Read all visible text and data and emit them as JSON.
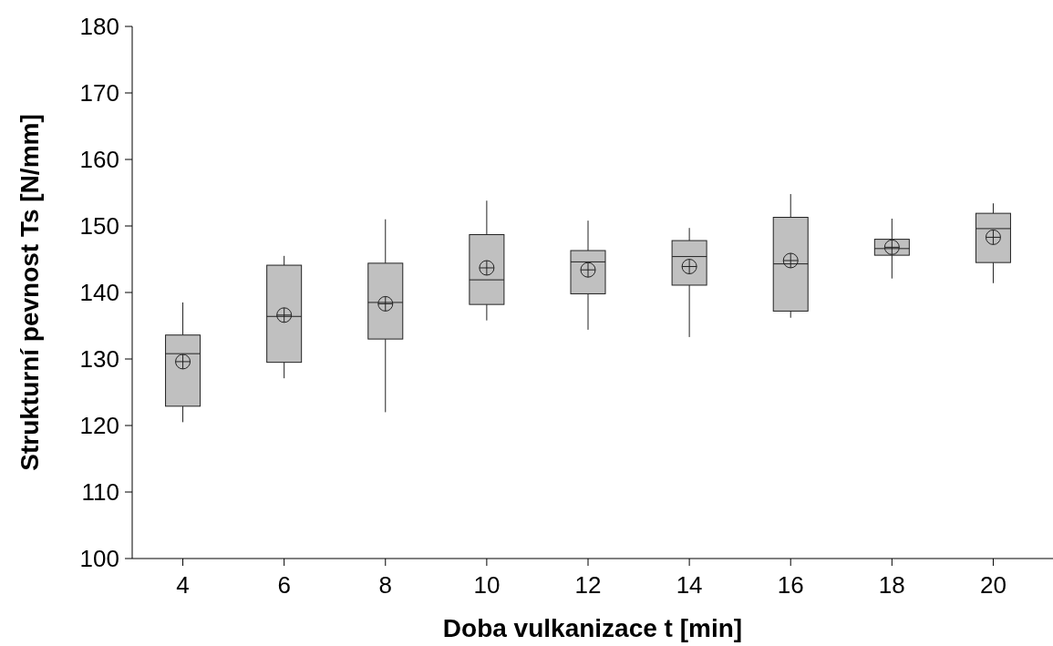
{
  "chart_data": {
    "type": "box",
    "xlabel": "Doba vulkanizace t [min]",
    "ylabel": "Strukturní pevnost Ts [N/mm]",
    "categories": [
      "4",
      "6",
      "8",
      "10",
      "12",
      "14",
      "16",
      "18",
      "20"
    ],
    "color": "#c0c0c0",
    "ylim": [
      100,
      180
    ],
    "yticks": [
      100,
      110,
      120,
      130,
      140,
      150,
      160,
      170,
      180
    ],
    "boxes": [
      {
        "low": 120.5,
        "q1": 122.9,
        "median": 130.8,
        "q3": 133.6,
        "high": 138.5,
        "mean": 129.6
      },
      {
        "low": 127.1,
        "q1": 129.5,
        "median": 136.4,
        "q3": 144.1,
        "high": 145.5,
        "mean": 136.6
      },
      {
        "low": 122.0,
        "q1": 133.0,
        "median": 138.5,
        "q3": 144.4,
        "high": 151.0,
        "mean": 138.3
      },
      {
        "low": 135.8,
        "q1": 138.2,
        "median": 141.9,
        "q3": 148.7,
        "high": 153.8,
        "mean": 143.7
      },
      {
        "low": 134.4,
        "q1": 139.8,
        "median": 144.6,
        "q3": 146.3,
        "high": 150.8,
        "mean": 143.4
      },
      {
        "low": 133.3,
        "q1": 141.1,
        "median": 145.4,
        "q3": 147.8,
        "high": 149.7,
        "mean": 143.9
      },
      {
        "low": 136.2,
        "q1": 137.2,
        "median": 144.3,
        "q3": 151.3,
        "high": 154.8,
        "mean": 144.8
      },
      {
        "low": 142.1,
        "q1": 145.6,
        "median": 146.6,
        "q3": 148.0,
        "high": 151.1,
        "mean": 146.8
      },
      {
        "low": 141.4,
        "q1": 144.5,
        "median": 149.6,
        "q3": 151.9,
        "high": 153.4,
        "mean": 148.3
      }
    ]
  }
}
